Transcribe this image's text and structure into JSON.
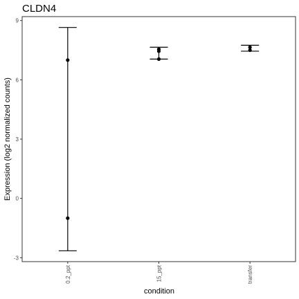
{
  "chart_data": {
    "type": "scatter",
    "title": "CLDN4",
    "xlabel": "condition",
    "ylabel": "Expression (log2 normalized counts)",
    "categories": [
      "0.2_ppt",
      "15_ppt",
      "transfer"
    ],
    "ylim": [
      -3.2,
      9.2
    ],
    "yticks": [
      -3,
      0,
      3,
      6,
      9
    ],
    "grid": false,
    "points": [
      {
        "category": "0.2_ppt",
        "values": [
          7.0,
          -1.0
        ]
      },
      {
        "category": "15_ppt",
        "values": [
          7.55,
          7.45,
          7.05
        ]
      },
      {
        "category": "transfer",
        "values": [
          7.65,
          7.5
        ]
      }
    ],
    "error_bars": [
      {
        "category": "0.2_ppt",
        "low": -2.65,
        "high": 8.65
      },
      {
        "category": "15_ppt",
        "low": 7.05,
        "high": 7.65
      },
      {
        "category": "transfer",
        "low": 7.45,
        "high": 7.75
      }
    ],
    "colors": {
      "points": "#000000",
      "bars": "#000000",
      "panel_border": "#333333",
      "tick_text": "#4d4d4d"
    }
  }
}
